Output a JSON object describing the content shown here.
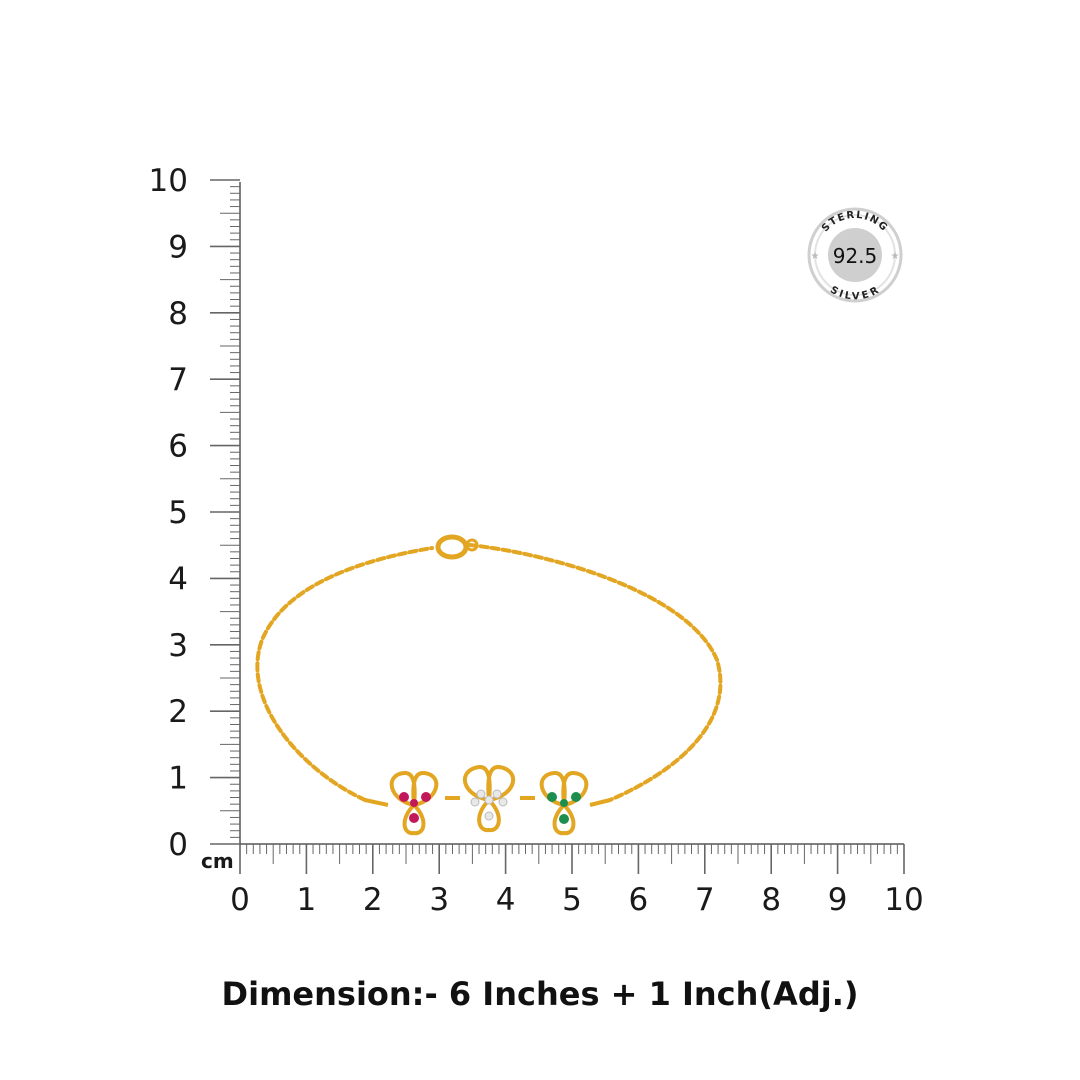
{
  "ruler": {
    "unit": "cm",
    "x_ticks": [
      "0",
      "1",
      "2",
      "3",
      "4",
      "5",
      "6",
      "7",
      "8",
      "9",
      "10"
    ],
    "y_ticks": [
      "0",
      "1",
      "2",
      "3",
      "4",
      "5",
      "6",
      "7",
      "8",
      "9",
      "10"
    ]
  },
  "badge": {
    "top_text": "STERLING",
    "value": "92.5",
    "bottom_text": "SILVER"
  },
  "product": {
    "name": "bracelet",
    "metal_color": "#E3A623",
    "stone_colors": [
      "#C2185B",
      "#F2F2F2",
      "#1E8E4E"
    ]
  },
  "caption": "Dimension:- 6 Inches + 1 Inch(Adj.)"
}
